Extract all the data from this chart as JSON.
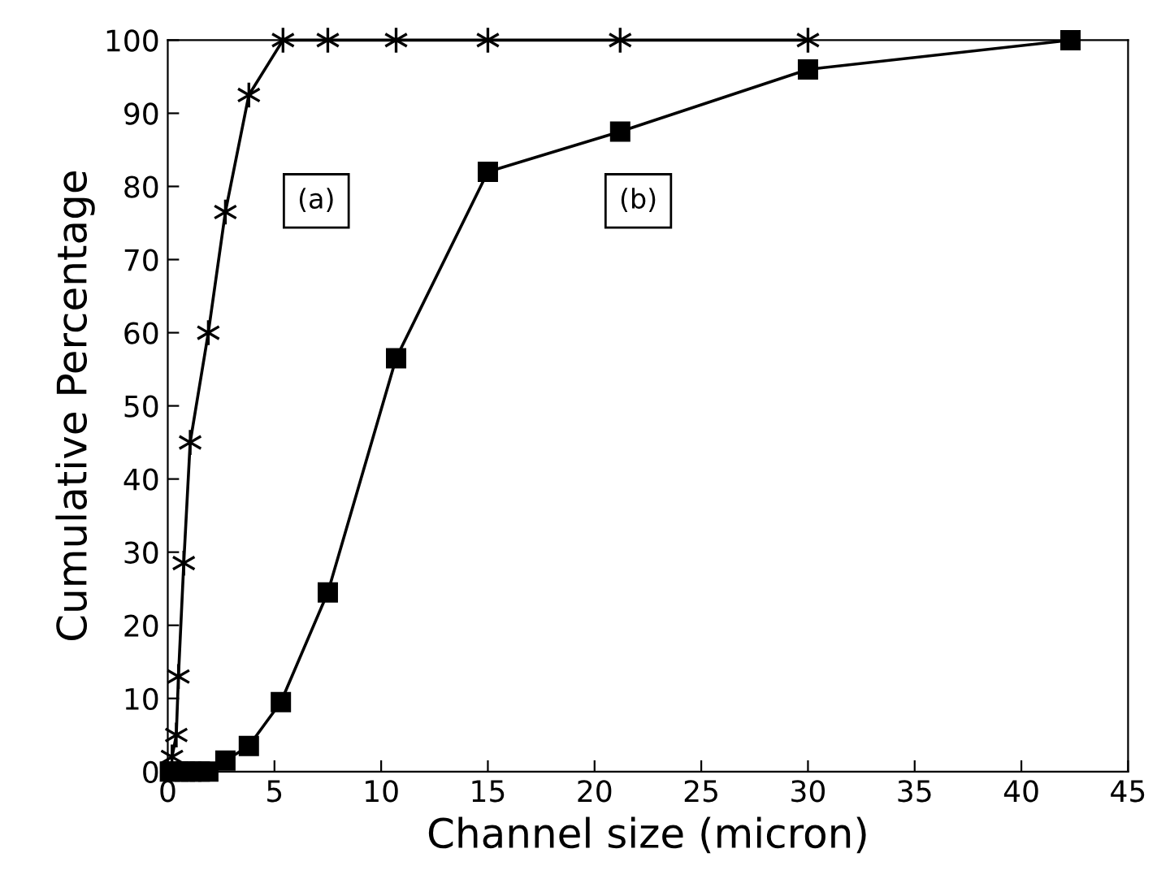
{
  "chart_data": {
    "type": "line",
    "xlabel": "Channel size (micron)",
    "ylabel": "Cumulative Percentage",
    "xlim": [
      0,
      45
    ],
    "ylim": [
      0,
      100
    ],
    "xticks": [
      0,
      5,
      10,
      15,
      20,
      25,
      30,
      35,
      40,
      45
    ],
    "yticks": [
      0,
      10,
      20,
      30,
      40,
      50,
      60,
      70,
      80,
      90,
      100
    ],
    "grid": false,
    "legend": false,
    "line_style": "solid",
    "series": [
      {
        "name": "(a)",
        "color": "#000000",
        "marker": "cross",
        "x": [
          0.2,
          0.4,
          0.5,
          0.75,
          1.05,
          1.9,
          2.7,
          3.8,
          5.4,
          7.5,
          10.7,
          15,
          21.2,
          30
        ],
        "values": [
          2,
          5,
          13,
          28.5,
          45,
          60,
          76.5,
          92.5,
          100,
          100,
          100,
          100,
          100,
          100
        ]
      },
      {
        "name": "(b)",
        "color": "#000000",
        "marker": "square",
        "x": [
          0.1,
          0.5,
          0.8,
          1.1,
          1.5,
          1.9,
          2.7,
          3.8,
          5.3,
          7.5,
          10.7,
          15,
          21.2,
          30,
          42.3
        ],
        "values": [
          0,
          0,
          0,
          0,
          0,
          0,
          1.5,
          3.5,
          9.5,
          24.5,
          56.5,
          82,
          87.5,
          96,
          100
        ]
      }
    ]
  }
}
